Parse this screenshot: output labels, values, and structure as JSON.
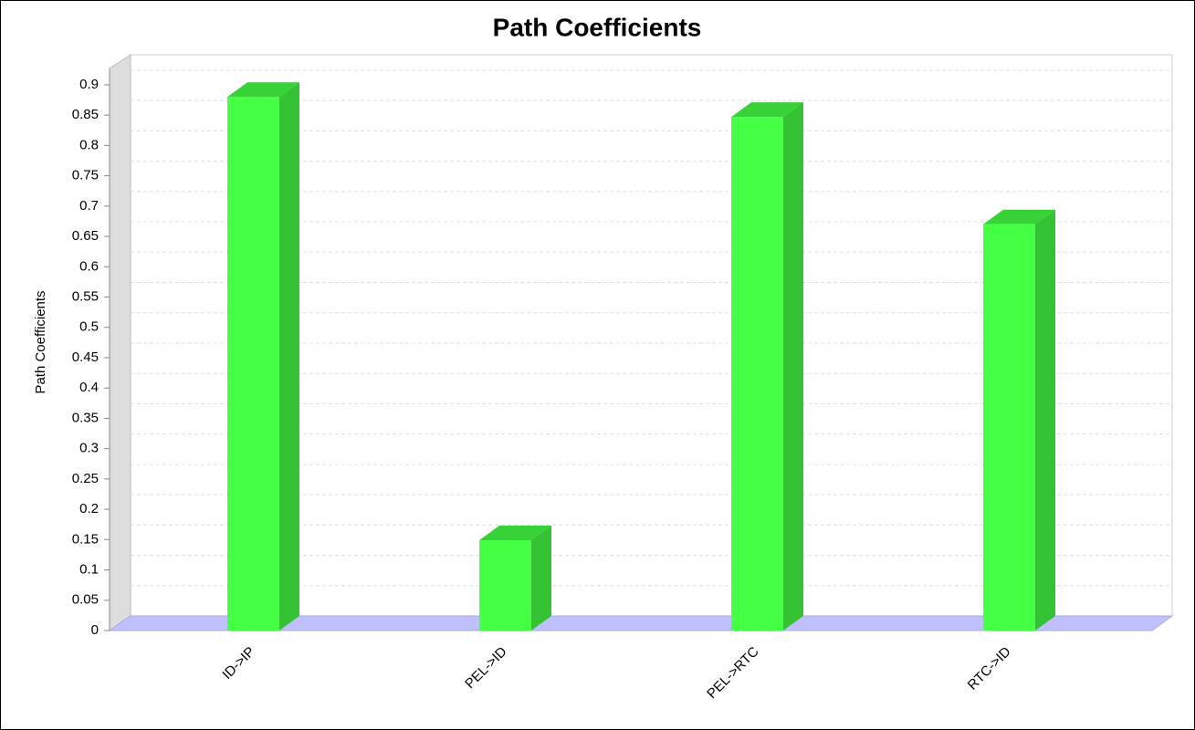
{
  "chart_data": {
    "type": "bar3d",
    "title": "Path Coefficients",
    "y_label": "Path Coefficients",
    "categories": [
      "ID->IP",
      "PEL->ID",
      "PEL->RTC",
      "RTC->ID"
    ],
    "values": [
      0.88,
      0.149,
      0.847,
      0.67
    ],
    "color": "#44ff44",
    "ylim": [
      0,
      0.927
    ],
    "yticks": [
      0,
      0.05,
      0.1,
      0.15,
      0.2,
      0.25,
      0.3,
      0.35,
      0.4,
      0.45,
      0.5,
      0.55,
      0.6,
      0.65,
      0.7,
      0.75,
      0.8,
      0.85,
      0.9
    ],
    "grid": true
  }
}
